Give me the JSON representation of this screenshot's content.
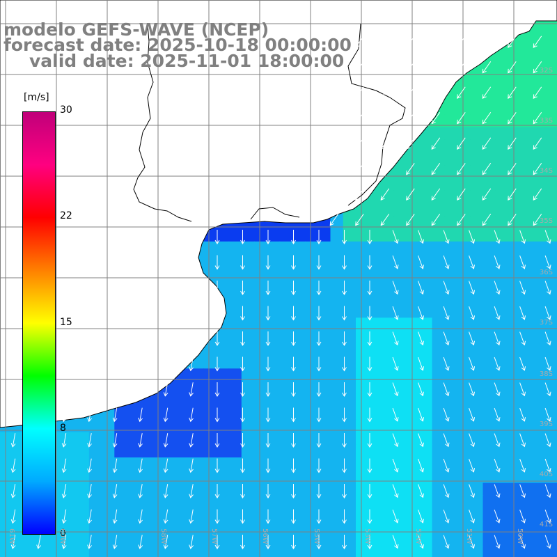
{
  "title": {
    "model": "modelo GEFS-WAVE (NCEP)",
    "forecast": "forecast date: 2025-10-18 00:00:00",
    "valid": "valid date: 2025-11-01 18:00:00"
  },
  "colorbar": {
    "unit": "[m/s]",
    "ticks": [
      "30",
      "22",
      "15",
      "8",
      "0"
    ],
    "colors": [
      "#0000ff",
      "#00aaff",
      "#00ffff",
      "#00ff00",
      "#ffff00",
      "#ff8000",
      "#ff0000",
      "#ff0080",
      "#c0007a"
    ]
  },
  "grid": {
    "lat_labels": [
      "32S",
      "33S",
      "34S",
      "35S",
      "36S",
      "37S",
      "38S",
      "39S",
      "40S",
      "41S"
    ],
    "lon_labels": [
      "61W",
      "60W",
      "58W",
      "57W",
      "56W",
      "55W",
      "53W",
      "52W",
      "51W",
      "50W"
    ]
  },
  "colors": {
    "land": "#ffffff",
    "coast": "#000000",
    "grid": "#808080",
    "arrow": "#ffffff"
  }
}
